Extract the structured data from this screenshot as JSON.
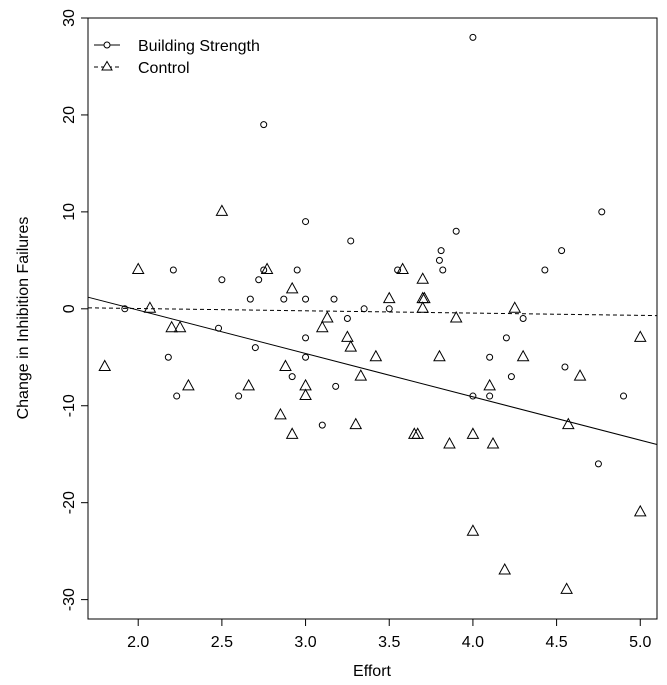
{
  "chart_data": {
    "type": "scatter",
    "title": "",
    "xlabel": "Effort",
    "ylabel": "Change in Inhibition Failures",
    "xlim": [
      1.7,
      5.1
    ],
    "ylim": [
      -32,
      30
    ],
    "xticks": [
      "2.0",
      "2.5",
      "3.0",
      "3.5",
      "4.0",
      "4.5",
      "5.0"
    ],
    "xtick_values": [
      2.0,
      2.5,
      3.0,
      3.5,
      4.0,
      4.5,
      5.0
    ],
    "yticks": [
      "-30",
      "-20",
      "-10",
      "0",
      "10",
      "20",
      "30"
    ],
    "ytick_values": [
      -30,
      -20,
      -10,
      0,
      10,
      20,
      30
    ],
    "grid": false,
    "legend_position": "top-left",
    "legend": [
      {
        "name": "Building Strength",
        "marker": "circle",
        "line": "solid"
      },
      {
        "name": "Control",
        "marker": "triangle",
        "line": "dashed"
      }
    ],
    "series": [
      {
        "name": "Building Strength",
        "marker": "circle",
        "points": [
          [
            1.92,
            0
          ],
          [
            2.18,
            -5
          ],
          [
            2.21,
            4
          ],
          [
            2.23,
            -9
          ],
          [
            2.48,
            -2
          ],
          [
            2.5,
            3
          ],
          [
            2.6,
            -9
          ],
          [
            2.67,
            1
          ],
          [
            2.7,
            -4
          ],
          [
            2.72,
            3
          ],
          [
            2.75,
            19
          ],
          [
            2.75,
            4
          ],
          [
            2.87,
            1
          ],
          [
            2.92,
            -7
          ],
          [
            2.95,
            4
          ],
          [
            3.0,
            9
          ],
          [
            3.0,
            1
          ],
          [
            3.0,
            -3
          ],
          [
            3.0,
            -5
          ],
          [
            3.1,
            -12
          ],
          [
            3.17,
            1
          ],
          [
            3.18,
            -8
          ],
          [
            3.25,
            -1
          ],
          [
            3.27,
            7
          ],
          [
            3.35,
            0
          ],
          [
            3.5,
            0
          ],
          [
            3.55,
            4
          ],
          [
            3.8,
            5
          ],
          [
            3.81,
            6
          ],
          [
            3.82,
            4
          ],
          [
            3.9,
            8
          ],
          [
            4.0,
            28
          ],
          [
            4.0,
            -9
          ],
          [
            4.1,
            -5
          ],
          [
            4.1,
            -9
          ],
          [
            4.2,
            -3
          ],
          [
            4.23,
            -7
          ],
          [
            4.3,
            -1
          ],
          [
            4.43,
            4
          ],
          [
            4.53,
            6
          ],
          [
            4.55,
            -6
          ],
          [
            4.75,
            -16
          ],
          [
            4.77,
            10
          ],
          [
            4.9,
            -9
          ]
        ],
        "fit": [
          [
            1.7,
            1.2
          ],
          [
            5.1,
            -14.0
          ]
        ]
      },
      {
        "name": "Control",
        "marker": "triangle",
        "points": [
          [
            1.8,
            -6
          ],
          [
            2.0,
            4
          ],
          [
            2.07,
            0
          ],
          [
            2.2,
            -2
          ],
          [
            2.25,
            -2
          ],
          [
            2.3,
            -8
          ],
          [
            2.5,
            10
          ],
          [
            2.66,
            -8
          ],
          [
            2.77,
            4
          ],
          [
            2.85,
            -11
          ],
          [
            2.88,
            -6
          ],
          [
            2.92,
            -13
          ],
          [
            2.92,
            2
          ],
          [
            3.0,
            -8
          ],
          [
            3.0,
            -9
          ],
          [
            3.1,
            -2
          ],
          [
            3.13,
            -1
          ],
          [
            3.25,
            -3
          ],
          [
            3.27,
            -4
          ],
          [
            3.3,
            -12
          ],
          [
            3.33,
            -7
          ],
          [
            3.42,
            -5
          ],
          [
            3.5,
            1
          ],
          [
            3.58,
            4
          ],
          [
            3.65,
            -13
          ],
          [
            3.67,
            -13
          ],
          [
            3.7,
            3
          ],
          [
            3.7,
            1
          ],
          [
            3.71,
            1
          ],
          [
            3.7,
            0
          ],
          [
            3.8,
            -5
          ],
          [
            3.86,
            -14
          ],
          [
            3.9,
            -1
          ],
          [
            4.0,
            -23
          ],
          [
            4.0,
            -13
          ],
          [
            4.1,
            -8
          ],
          [
            4.12,
            -14
          ],
          [
            4.19,
            -27
          ],
          [
            4.25,
            0
          ],
          [
            4.3,
            -5
          ],
          [
            4.56,
            -29
          ],
          [
            4.57,
            -12
          ],
          [
            4.64,
            -7
          ],
          [
            5.0,
            -3
          ],
          [
            5.0,
            -21
          ]
        ],
        "fit": [
          [
            1.7,
            0.1
          ],
          [
            5.1,
            -0.7
          ]
        ]
      }
    ]
  }
}
